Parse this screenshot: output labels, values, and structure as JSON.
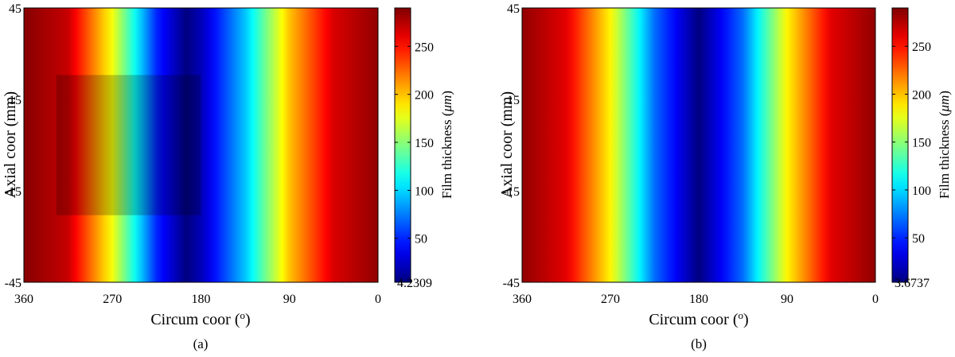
{
  "chart_data": [
    {
      "type": "heatmap",
      "caption": "(a)",
      "xlabel": "Circum coor (",
      "xlabel_sup": "o",
      "xlabel_close": ")",
      "ylabel": "Axial coor (mm)",
      "x_ticks": [
        "360",
        "270",
        "180",
        "90",
        "0"
      ],
      "y_ticks": [
        "45",
        "15",
        "-15",
        "-45"
      ],
      "xlim": [
        360,
        0
      ],
      "ylim": [
        -45,
        45
      ],
      "colorbar": {
        "label": "Film thickness (",
        "label_unit": "μm",
        "label_close": ")",
        "ticks": [
          "250",
          "200",
          "150",
          "100",
          "50"
        ],
        "min_label": "4.2309",
        "min": 4.2309,
        "max": 290,
        "colormap": "jet"
      },
      "field": {
        "description_free": true,
        "profile": [
          [
            0,
            285
          ],
          [
            45,
            265
          ],
          [
            90,
            200
          ],
          [
            135,
            95
          ],
          [
            180,
            20
          ],
          [
            195,
            4.23
          ],
          [
            225,
            50
          ],
          [
            270,
            180
          ],
          [
            315,
            270
          ],
          [
            360,
            288
          ]
        ],
        "inset_region": {
          "x": [
            327,
            180
          ],
          "y": [
            -23,
            23
          ],
          "shade": 0.22
        }
      }
    },
    {
      "type": "heatmap",
      "caption": "(b)",
      "xlabel": "Circum coor (",
      "xlabel_sup": "o",
      "xlabel_close": ")",
      "ylabel": "Axial coor (mm)",
      "x_ticks": [
        "360",
        "270",
        "180",
        "90",
        "0"
      ],
      "y_ticks": [
        "45",
        "15",
        "-15",
        "-45"
      ],
      "xlim": [
        360,
        0
      ],
      "ylim": [
        -45,
        45
      ],
      "colorbar": {
        "label": "Film thickness (",
        "label_unit": "μm",
        "label_close": ")",
        "ticks": [
          "250",
          "200",
          "150",
          "100",
          "50"
        ],
        "min_label": "3.6737",
        "min": 3.6737,
        "max": 290,
        "colormap": "jet"
      },
      "field": {
        "profile": [
          [
            0,
            285
          ],
          [
            45,
            262
          ],
          [
            90,
            185
          ],
          [
            135,
            70
          ],
          [
            180,
            3.67
          ],
          [
            225,
            70
          ],
          [
            270,
            185
          ],
          [
            315,
            262
          ],
          [
            360,
            285
          ]
        ]
      }
    }
  ]
}
